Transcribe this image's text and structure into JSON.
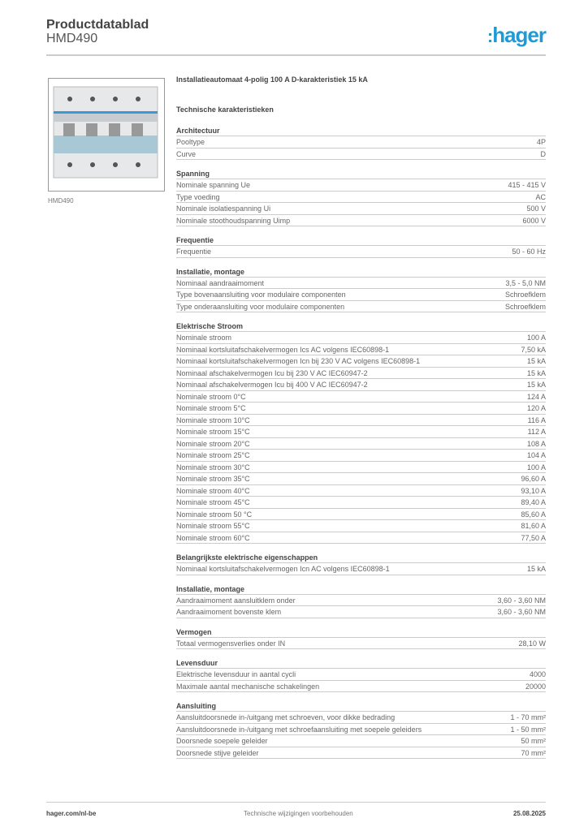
{
  "header": {
    "title": "Productdatablad",
    "subtitle": "HMD490",
    "logo": "hager"
  },
  "image_caption": "HMD490",
  "product_title": "Installatieautomaat 4-polig 100 A D-karakteristiek 15 kA",
  "tech_title": "Technische karakteristieken",
  "sections": [
    {
      "title": "Architectuur",
      "rows": [
        [
          "Pooltype",
          "4P"
        ],
        [
          "Curve",
          "D"
        ]
      ]
    },
    {
      "title": "Spanning",
      "rows": [
        [
          "Nominale spanning Ue",
          "415 - 415 V"
        ],
        [
          "Type voeding",
          "AC"
        ],
        [
          "Nominale isolatiespanning Ui",
          "500 V"
        ],
        [
          "Nominale stoothoudspanning Uimp",
          "6000 V"
        ]
      ]
    },
    {
      "title": "Frequentie",
      "rows": [
        [
          "Frequentie",
          "50 - 60 Hz"
        ]
      ]
    },
    {
      "title": "Installatie, montage",
      "rows": [
        [
          "Nominaal aandraaimoment",
          "3,5 - 5,0 NM"
        ],
        [
          "Type bovenaansluiting voor modulaire componenten",
          "Schroefklem"
        ],
        [
          "Type onderaansluiting voor modulaire componenten",
          "Schroefklem"
        ]
      ]
    },
    {
      "title": "Elektrische Stroom",
      "rows": [
        [
          "Nominale stroom",
          "100 A"
        ],
        [
          "Nominaal kortsluitafschakelvermogen Ics AC volgens IEC60898-1",
          "7,50 kA"
        ],
        [
          "Nominaal kortsluitafschakelvermogen Icn bij 230 V AC volgens IEC60898-1",
          "15 kA"
        ],
        [
          "Nominaal afschakelvermogen Icu bij 230 V AC IEC60947-2",
          "15 kA"
        ],
        [
          "Nominaal afschakelvermogen Icu bij 400 V AC IEC60947-2",
          "15 kA"
        ],
        [
          "Nominale stroom 0°C",
          "124 A"
        ],
        [
          "Nominale stroom 5°C",
          "120 A"
        ],
        [
          "Nominale stroom 10°C",
          "116 A"
        ],
        [
          "Nominale stroom 15°C",
          "112 A"
        ],
        [
          "Nominale stroom 20°C",
          "108 A"
        ],
        [
          "Nominale stroom 25°C",
          "104 A"
        ],
        [
          "Nominale stroom 30°C",
          "100 A"
        ],
        [
          "Nominale stroom 35°C",
          "96,60 A"
        ],
        [
          "Nominale stroom 40°C",
          "93,10 A"
        ],
        [
          "Nominale stroom 45°C",
          "89,40 A"
        ],
        [
          "Nominale stroom 50 °C",
          "85,60 A"
        ],
        [
          "Nominale stroom 55°C",
          "81,60 A"
        ],
        [
          "Nominale stroom 60°C",
          "77,50 A"
        ]
      ]
    },
    {
      "title": "Belangrijkste elektrische eigenschappen",
      "rows": [
        [
          "Nominaal kortsluitafschakelvermogen Icn AC volgens IEC60898-1",
          "15 kA"
        ]
      ]
    },
    {
      "title": "Installatie, montage",
      "rows": [
        [
          "Aandraaimoment aansluitklem onder",
          "3,60 - 3,60 NM"
        ],
        [
          "Aandraaimoment bovenste klem",
          "3,60 - 3,60 NM"
        ]
      ]
    },
    {
      "title": "Vermogen",
      "rows": [
        [
          "Totaal vermogensverlies onder IN",
          "28,10 W"
        ]
      ]
    },
    {
      "title": "Levensduur",
      "rows": [
        [
          "Elektrische levensduur in aantal cycli",
          "4000"
        ],
        [
          "Maximale aantal mechanische schakelingen",
          "20000"
        ]
      ]
    },
    {
      "title": "Aansluiting",
      "rows": [
        [
          "Aansluitdoorsnede in-/uitgang met schroeven, voor dikke bedrading",
          "1 - 70 mm²"
        ],
        [
          "Aansluitdoorsnede in-/uitgang met schroefaansluiting met soepele geleiders",
          "1 - 50 mm²"
        ],
        [
          "Doorsnede soepele geleider",
          "50 mm²"
        ],
        [
          "Doorsnede stijve geleider",
          "70 mm²"
        ]
      ]
    }
  ],
  "footer": {
    "website": "hager.com/nl-be",
    "note": "Technische wijzigingen voorbehouden",
    "date": "25.08.2025"
  }
}
